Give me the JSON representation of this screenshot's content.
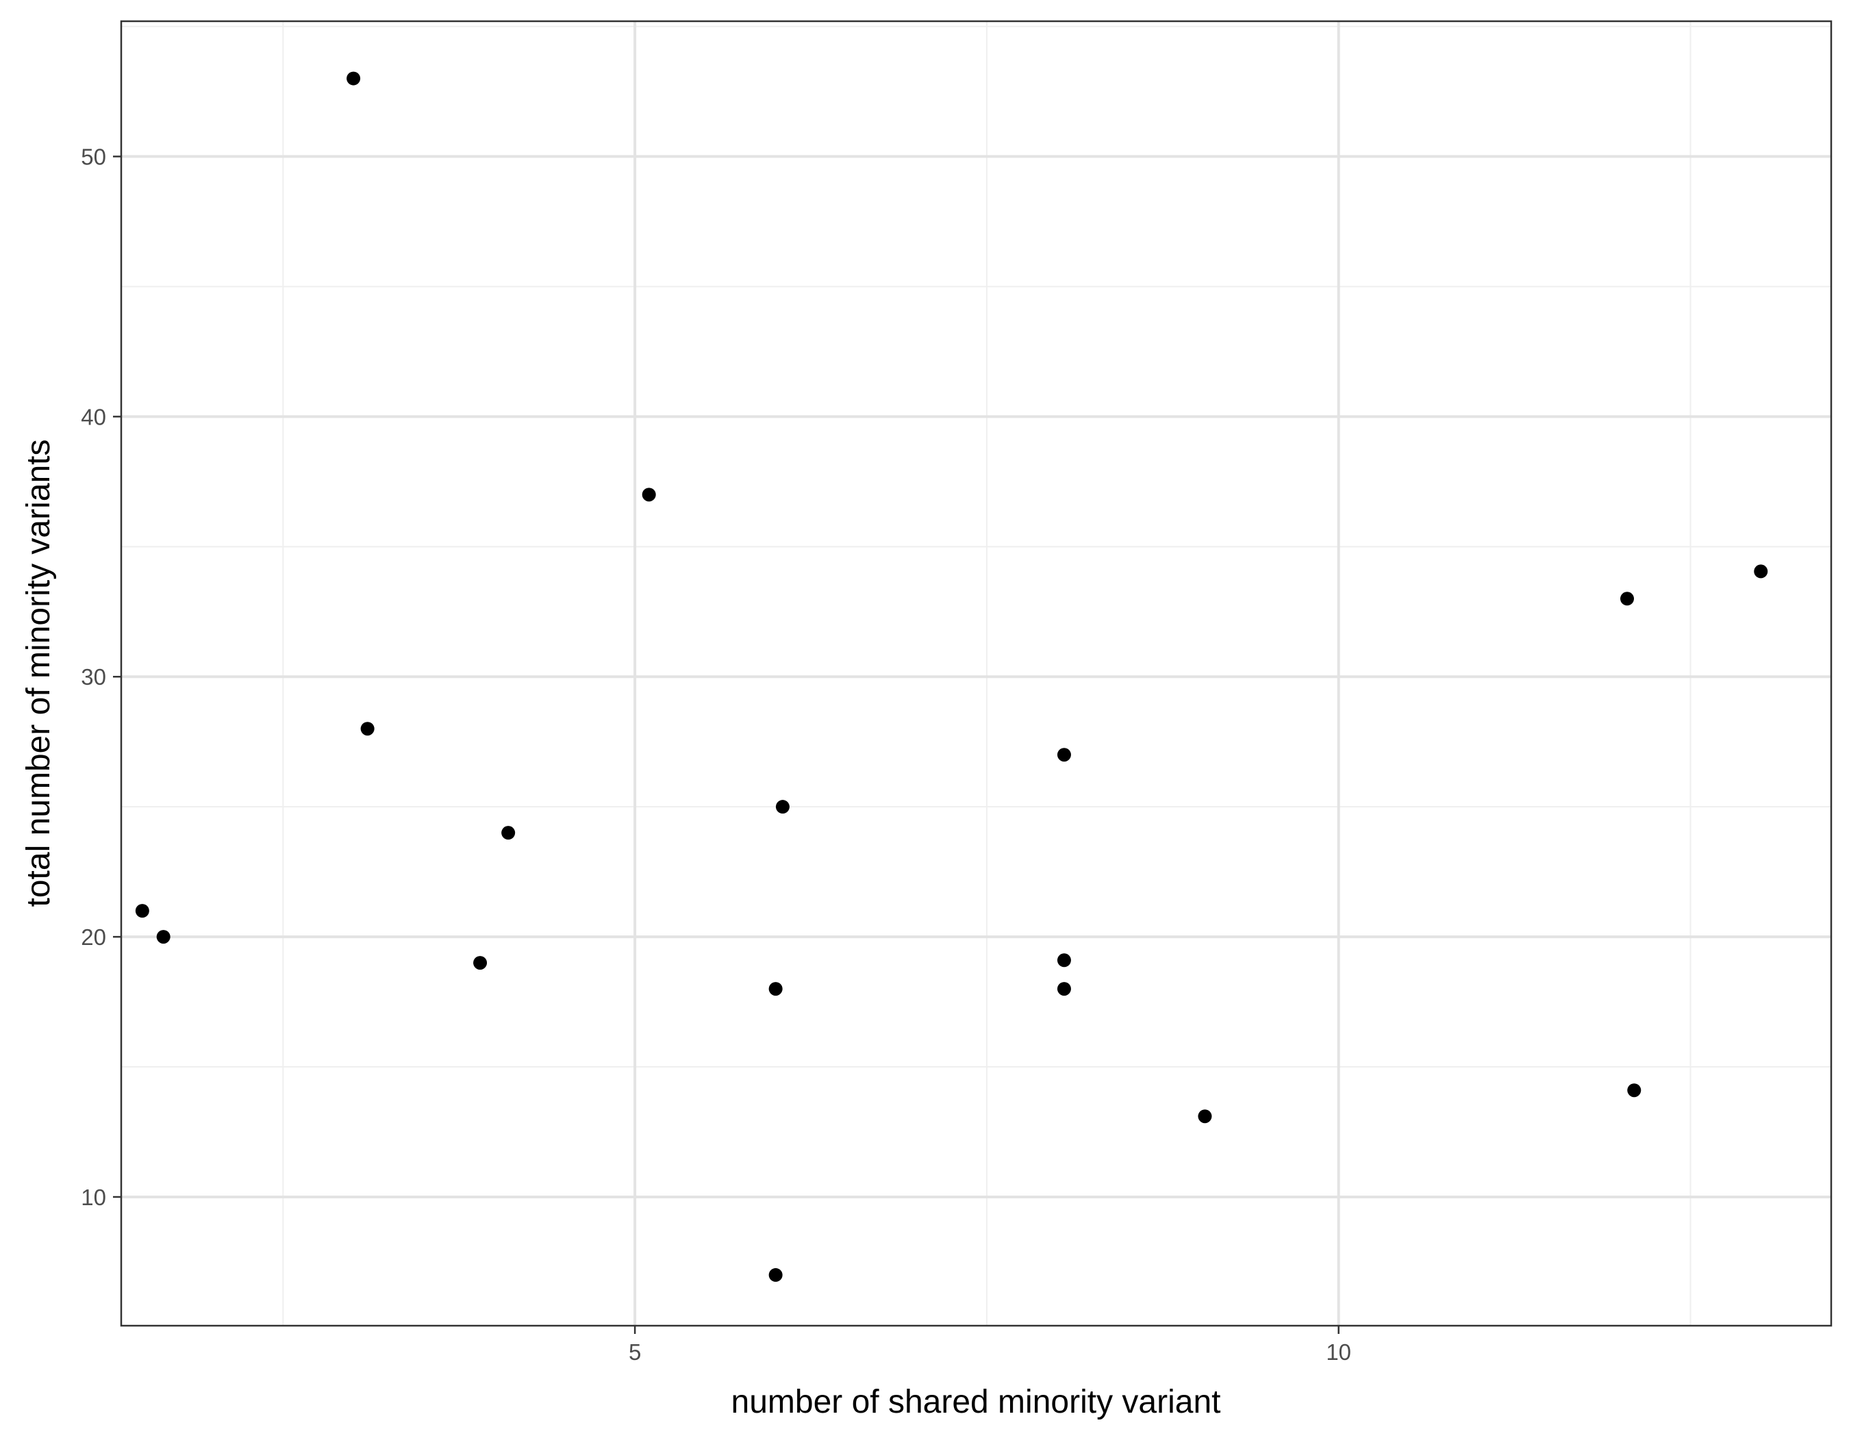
{
  "chart_data": {
    "type": "scatter",
    "title": "",
    "xlabel": "number of shared minority variant",
    "ylabel": "total number of minority variants",
    "xlim": [
      1.35,
      13.5
    ],
    "ylim": [
      5.05,
      55.2
    ],
    "x_ticks": [
      5,
      10
    ],
    "y_ticks": [
      10,
      20,
      30,
      40,
      50
    ],
    "grid": true,
    "points": [
      {
        "x": 3.0,
        "y": 53
      },
      {
        "x": 3.1,
        "y": 28
      },
      {
        "x": 1.5,
        "y": 21
      },
      {
        "x": 1.65,
        "y": 20
      },
      {
        "x": 4.1,
        "y": 24
      },
      {
        "x": 3.9,
        "y": 19
      },
      {
        "x": 5.1,
        "y": 37
      },
      {
        "x": 6.05,
        "y": 25
      },
      {
        "x": 6.0,
        "y": 18
      },
      {
        "x": 6.0,
        "y": 7
      },
      {
        "x": 8.05,
        "y": 27
      },
      {
        "x": 8.05,
        "y": 19.1
      },
      {
        "x": 8.05,
        "y": 18
      },
      {
        "x": 9.05,
        "y": 13.1
      },
      {
        "x": 12.05,
        "y": 33
      },
      {
        "x": 12.1,
        "y": 14.1
      },
      {
        "x": 13.0,
        "y": 34.05
      }
    ]
  },
  "colors": {
    "point": "#000000",
    "grid_major": "#e3e3e3",
    "grid_minor": "#efefef",
    "panel_border": "#333333",
    "tick_label": "#4d4d4d"
  }
}
